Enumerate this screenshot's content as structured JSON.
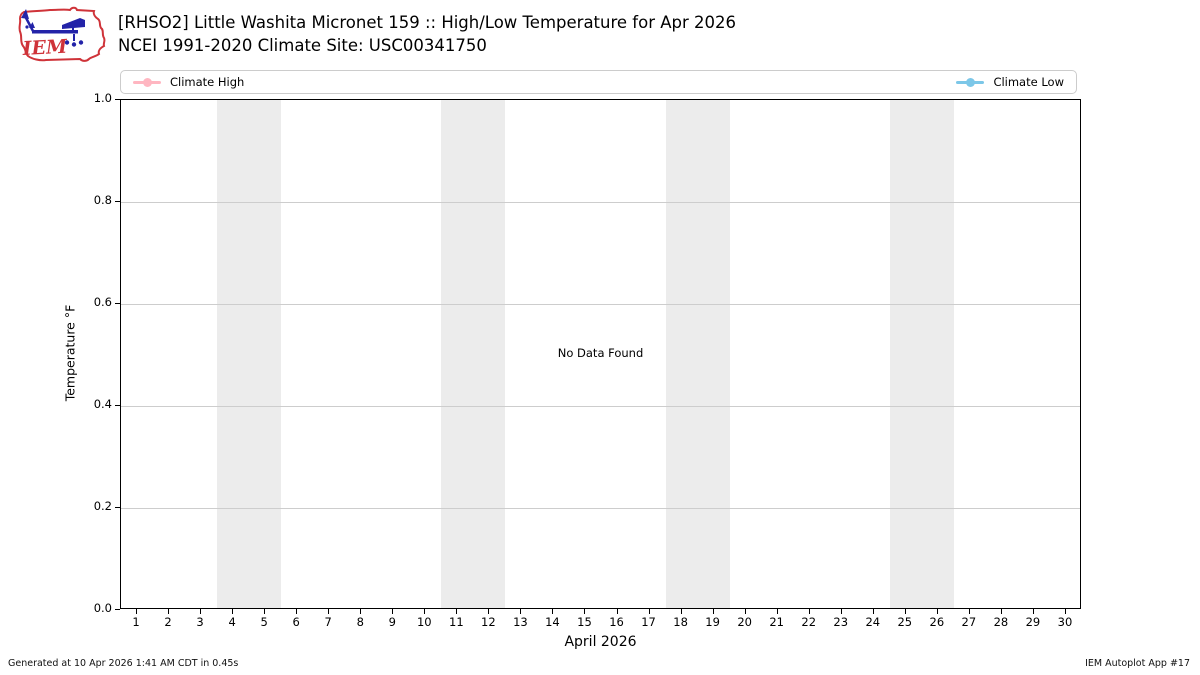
{
  "header": {
    "logo_text": "IEM",
    "title_line1": "[RHSO2] Little Washita Micronet 159 :: High/Low Temperature for Apr 2026",
    "title_line2": "NCEI 1991-2020 Climate Site: USC00341750"
  },
  "legend": {
    "items": [
      {
        "label": "Climate High",
        "color": "#ffb6c1"
      },
      {
        "label": "Climate Low",
        "color": "#7cc7e8"
      }
    ]
  },
  "chart_data": {
    "type": "line",
    "title": "[RHSO2] Little Washita Micronet 159 :: High/Low Temperature for Apr 2026",
    "subtitle": "NCEI 1991-2020 Climate Site: USC00341750",
    "xlabel": "April 2026",
    "ylabel": "Temperature °F",
    "x_ticks": [
      1,
      2,
      3,
      4,
      5,
      6,
      7,
      8,
      9,
      10,
      11,
      12,
      13,
      14,
      15,
      16,
      17,
      18,
      19,
      20,
      21,
      22,
      23,
      24,
      25,
      26,
      27,
      28,
      29,
      30
    ],
    "x_domain": [
      0.5,
      30.5
    ],
    "ylim": [
      0.0,
      1.0
    ],
    "y_ticks": [
      "0.0",
      "0.2",
      "0.4",
      "0.6",
      "0.8",
      "1.0"
    ],
    "grid": true,
    "legend_position": "top-expanded",
    "weekend_bands": [
      [
        3.5,
        5.5
      ],
      [
        10.5,
        12.5
      ],
      [
        17.5,
        19.5
      ],
      [
        24.5,
        26.5
      ]
    ],
    "series": [
      {
        "name": "Climate High",
        "color": "#ffb6c1",
        "values": []
      },
      {
        "name": "Climate Low",
        "color": "#7cc7e8",
        "values": []
      }
    ],
    "no_data_text": "No Data Found"
  },
  "footer": {
    "left": "Generated at 10 Apr 2026 1:41 AM CDT in 0.45s",
    "right": "IEM Autoplot App #17"
  }
}
